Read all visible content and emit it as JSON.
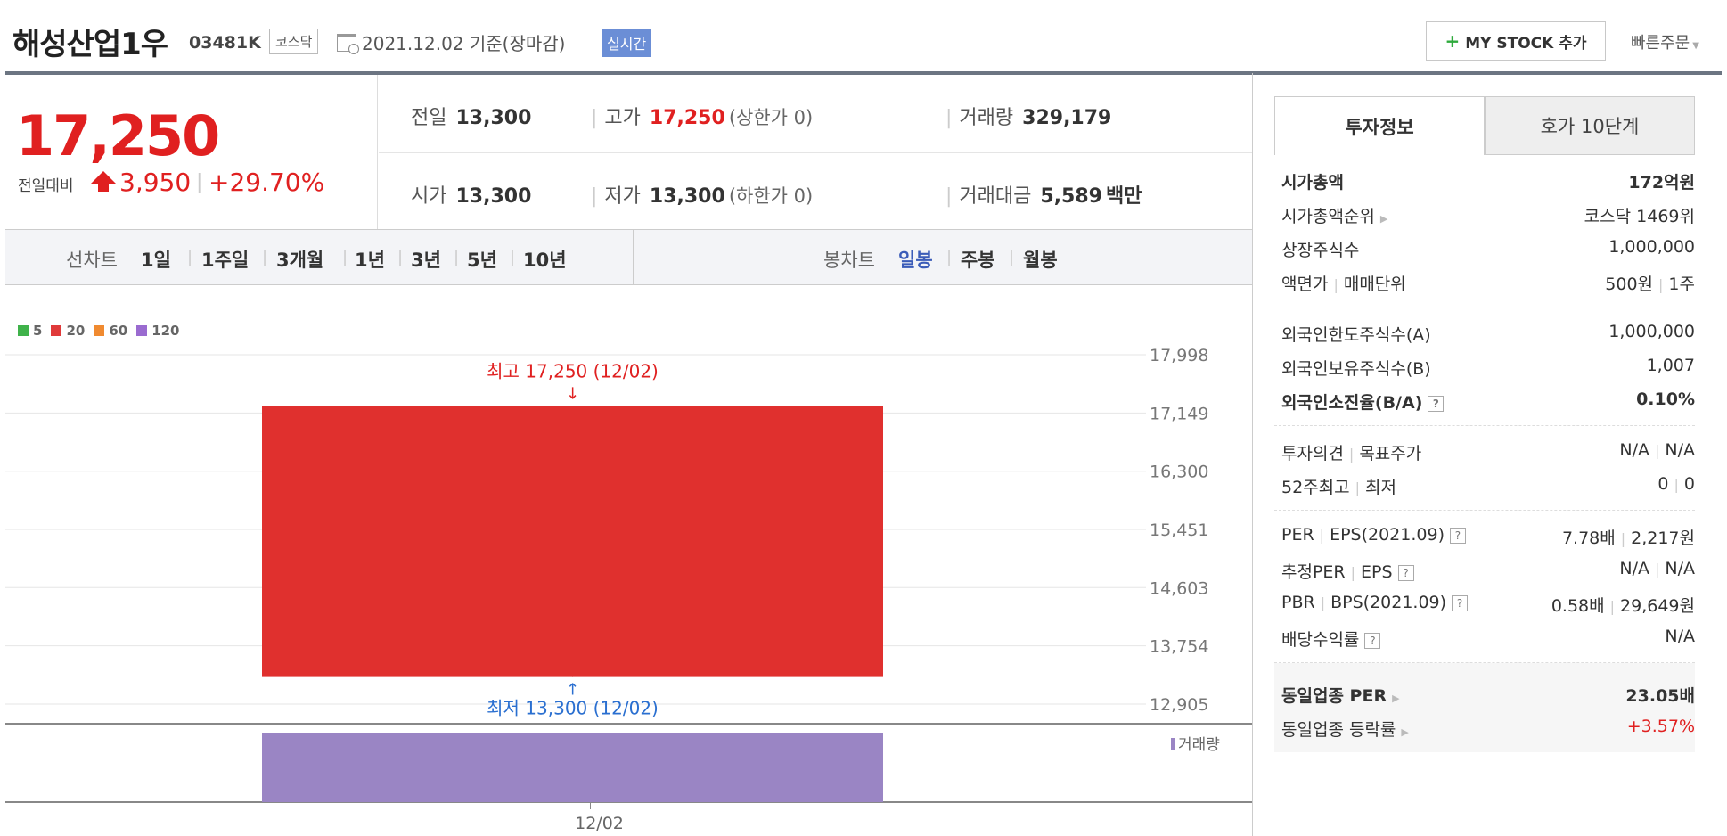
{
  "header": {
    "stock_name": "해성산업1우",
    "stock_code": "03481K",
    "market": "코스닥",
    "date_text": "2021.12.02  기준(장마감)",
    "realtime_label": "실시간",
    "mystock_label": "MY STOCK 추가",
    "quick_order_label": "빠른주문"
  },
  "price": {
    "current": "17,250",
    "change_label": "전일대비",
    "change_amount": "3,950",
    "change_rate": "+29.70%"
  },
  "stats": {
    "prev_close_label": "전일",
    "prev_close": "13,300",
    "high_label": "고가",
    "high": "17,250",
    "upper_limit": "(상한가 0)",
    "volume_label": "거래량",
    "volume": "329,179",
    "open_label": "시가",
    "open": "13,300",
    "low_label": "저가",
    "low": "13,300",
    "lower_limit": "(하한가 0)",
    "amount_label": "거래대금",
    "amount": "5,589",
    "amount_unit": "백만"
  },
  "chart_tabs": {
    "line_label": "선차트",
    "line_items": [
      "1일",
      "1주일",
      "3개월",
      "1년",
      "3년",
      "5년",
      "10년"
    ],
    "candle_label": "봉차트",
    "candle_items": [
      "일봉",
      "주봉",
      "월봉"
    ],
    "active_candle": "일봉"
  },
  "legend": [
    {
      "label": "5",
      "color": "#3fb24a"
    },
    {
      "label": "20",
      "color": "#e03a3a"
    },
    {
      "label": "60",
      "color": "#f08a30"
    },
    {
      "label": "120",
      "color": "#9a6bd0"
    }
  ],
  "chart_data": {
    "type": "candlestick",
    "x": [
      "12/02"
    ],
    "open": [
      13300
    ],
    "high": [
      17250
    ],
    "low": [
      13300
    ],
    "close": [
      17250
    ],
    "volume": [
      329179
    ],
    "y_ticks": [
      "17,998",
      "17,149",
      "16,300",
      "15,451",
      "14,603",
      "13,754",
      "12,905"
    ],
    "ylim": [
      12905,
      17998
    ],
    "high_annotation": "최고 17,250 (12/02)",
    "low_annotation": "최저 13,300 (12/02)",
    "volume_label": "거래량",
    "candle_color": "#e0302e",
    "volume_color": "#9a85c4",
    "annotation_high_color": "#e02020",
    "annotation_low_color": "#2a6fd0"
  },
  "invest_info": {
    "tab_active": "투자정보",
    "tab_inactive": "호가 10단계",
    "market_cap_label": "시가총액",
    "market_cap": "172억원",
    "market_cap_rank_label": "시가총액순위",
    "market_cap_rank": "코스닥 1469위",
    "shares_label": "상장주식수",
    "shares": "1,000,000",
    "par_label": "액면가",
    "trade_unit_label": "매매단위",
    "par_value": "500원",
    "trade_unit": "1주",
    "foreign_limit_label": "외국인한도주식수(A)",
    "foreign_limit": "1,000,000",
    "foreign_hold_label": "외국인보유주식수(B)",
    "foreign_hold": "1,007",
    "foreign_ratio_label": "외국인소진율(B/A)",
    "foreign_ratio": "0.10%",
    "opinion_label": "투자의견",
    "target_label": "목표주가",
    "opinion": "N/A",
    "target": "N/A",
    "high52_label": "52주최고",
    "low52_label": "최저",
    "high52": "0",
    "low52": "0",
    "per_label": "PER",
    "eps_label": "EPS(2021.09)",
    "per": "7.78배",
    "eps": "2,217원",
    "est_per_label": "추정PER",
    "est_eps_label": "EPS",
    "est_per": "N/A",
    "est_eps": "N/A",
    "pbr_label": "PBR",
    "bps_label": "BPS(2021.09)",
    "pbr": "0.58배",
    "bps": "29,649원",
    "dividend_label": "배당수익률",
    "dividend": "N/A",
    "sector_per_label": "동일업종 PER",
    "sector_per": "23.05배",
    "sector_change_label": "동일업종 등락률",
    "sector_change": "+3.57%"
  }
}
